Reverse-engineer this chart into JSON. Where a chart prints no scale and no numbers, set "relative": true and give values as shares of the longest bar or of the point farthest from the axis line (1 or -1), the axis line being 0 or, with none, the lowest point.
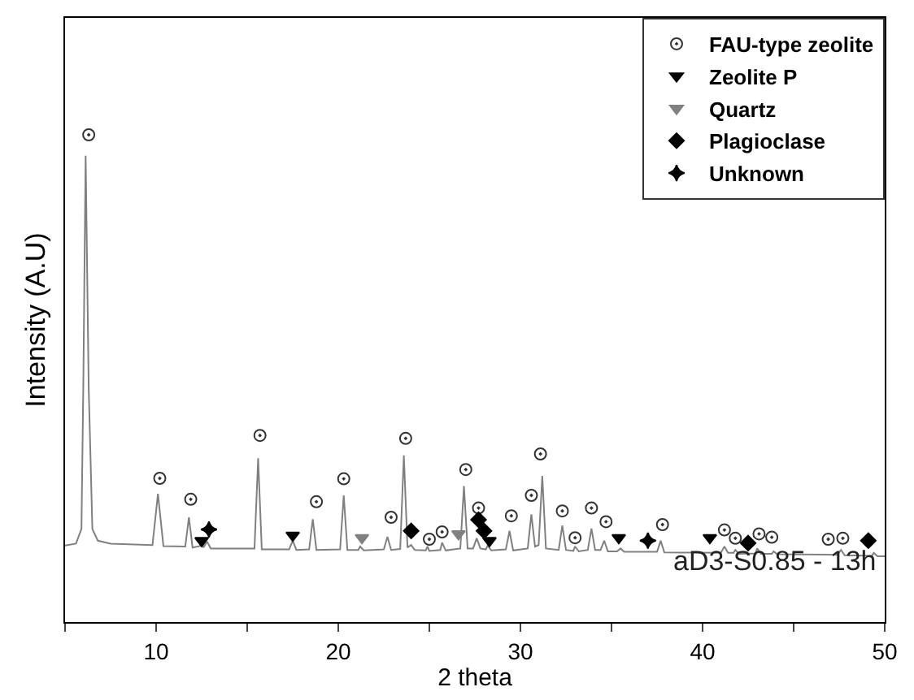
{
  "chart_data": {
    "type": "line",
    "relative": true,
    "xlabel": "2 theta",
    "ylabel": "Intensity (A.U)",
    "xlim": [
      5,
      50
    ],
    "xticks": [
      {
        "value": 5,
        "label": null
      },
      10,
      {
        "value": 15,
        "label": null
      },
      20,
      {
        "value": 25,
        "label": null
      },
      30,
      {
        "value": 35,
        "label": null
      },
      40,
      {
        "value": 45,
        "label": null
      },
      50
    ],
    "tick_labels": "x",
    "grid": false,
    "legend": "top right",
    "annotations": [
      "aD3-S0.85 - 13h"
    ],
    "series": [
      {
        "color": "#808080",
        "marker": "none",
        "line_style": "solid",
        "x": [
          5.0,
          5.6,
          5.9,
          6.0,
          6.13,
          6.3,
          6.5,
          6.8,
          7.5,
          9.8,
          10.1,
          10.4,
          11.6,
          11.8,
          12.0,
          12.4,
          12.5,
          12.6,
          12.8,
          13.0,
          15.4,
          15.6,
          15.8,
          17.3,
          17.5,
          17.7,
          18.4,
          18.6,
          18.8,
          20.1,
          20.3,
          20.5,
          21.1,
          21.2,
          21.4,
          22.5,
          22.7,
          22.9,
          23.4,
          23.6,
          23.8,
          24.0,
          24.2,
          24.8,
          24.9,
          25.0,
          25.6,
          25.7,
          25.9,
          26.7,
          26.9,
          27.1,
          27.4,
          27.6,
          27.8,
          28.1,
          28.2,
          28.4,
          29.2,
          29.4,
          29.6,
          30.4,
          30.6,
          30.8,
          31.0,
          31.2,
          31.4,
          32.1,
          32.3,
          32.5,
          32.9,
          33.0,
          33.2,
          33.7,
          33.9,
          34.1,
          34.4,
          34.6,
          34.8,
          35.3,
          35.5,
          35.7,
          37.5,
          37.7,
          37.9,
          41.0,
          41.2,
          41.4,
          41.7,
          41.8,
          42.0,
          42.9,
          43.0,
          43.2,
          43.8,
          43.9,
          44.1,
          47.4,
          47.6,
          47.8,
          49.3,
          49.4,
          49.6,
          50.0
        ],
        "values": [
          0.157,
          0.161,
          0.191,
          0.478,
          0.957,
          0.478,
          0.191,
          0.167,
          0.161,
          0.158,
          0.263,
          0.156,
          0.155,
          0.215,
          0.153,
          0.156,
          0.165,
          0.153,
          0.165,
          0.151,
          0.151,
          0.336,
          0.149,
          0.149,
          0.167,
          0.148,
          0.149,
          0.211,
          0.148,
          0.149,
          0.26,
          0.148,
          0.148,
          0.155,
          0.147,
          0.149,
          0.175,
          0.148,
          0.15,
          0.342,
          0.153,
          0.158,
          0.148,
          0.147,
          0.155,
          0.146,
          0.148,
          0.163,
          0.147,
          0.151,
          0.279,
          0.151,
          0.151,
          0.172,
          0.151,
          0.149,
          0.157,
          0.147,
          0.149,
          0.187,
          0.147,
          0.151,
          0.221,
          0.155,
          0.158,
          0.3,
          0.151,
          0.148,
          0.198,
          0.148,
          0.146,
          0.155,
          0.145,
          0.148,
          0.192,
          0.148,
          0.148,
          0.167,
          0.145,
          0.145,
          0.151,
          0.144,
          0.144,
          0.167,
          0.143,
          0.142,
          0.155,
          0.142,
          0.142,
          0.148,
          0.14,
          0.141,
          0.151,
          0.14,
          0.14,
          0.145,
          0.139,
          0.138,
          0.148,
          0.137,
          0.136,
          0.142,
          0.135,
          0.135
        ]
      },
      {
        "type": "scatter",
        "name": "FAU-type zeolite",
        "color": "#333333",
        "marker": "circle",
        "x": [
          6.3,
          10.2,
          11.9,
          15.7,
          18.8,
          20.3,
          22.9,
          23.7,
          25.0,
          25.7,
          27.0,
          27.7,
          29.5,
          30.6,
          31.1,
          32.3,
          33.0,
          33.9,
          34.7,
          37.8,
          41.2,
          41.8,
          43.1,
          43.8,
          46.9,
          47.7
        ],
        "values": [
          1.0,
          0.295,
          0.252,
          0.383,
          0.247,
          0.294,
          0.215,
          0.377,
          0.17,
          0.185,
          0.313,
          0.234,
          0.218,
          0.26,
          0.345,
          0.228,
          0.173,
          0.234,
          0.206,
          0.2,
          0.189,
          0.172,
          0.181,
          0.174,
          0.17,
          0.172
        ]
      },
      {
        "type": "scatter",
        "name": "Zeolite P",
        "color": "#000000",
        "marker": "triangle",
        "x": [
          12.5,
          17.5,
          28.3,
          35.4,
          40.4
        ],
        "values": [
          0.167,
          0.178,
          0.167,
          0.173,
          0.173
        ]
      },
      {
        "type": "scatter",
        "name": "Quartz",
        "color": "#808080",
        "marker": "triangle",
        "x": [
          21.3,
          26.6
        ],
        "values": [
          0.173,
          0.181
        ]
      },
      {
        "type": "scatter",
        "name": "Plagioclase",
        "color": "#000000",
        "marker": "diamond",
        "x": [
          24.0,
          27.7,
          28.0,
          42.5,
          49.1
        ],
        "values": [
          0.187,
          0.21,
          0.187,
          0.162,
          0.167
        ]
      },
      {
        "type": "scatter",
        "name": "Unknown",
        "color": "#000000",
        "marker": "star",
        "x": [
          12.9,
          37.0
        ],
        "values": [
          0.19,
          0.167
        ]
      }
    ]
  }
}
